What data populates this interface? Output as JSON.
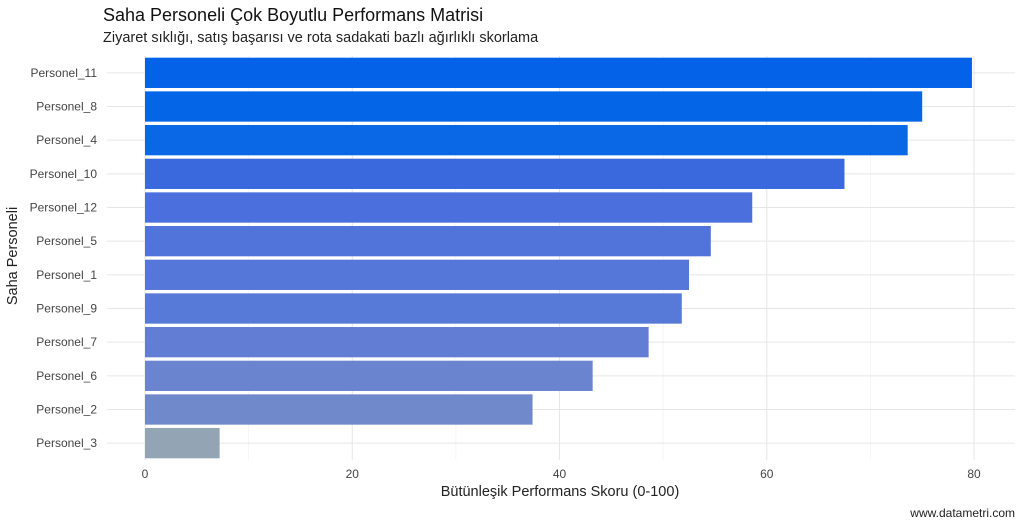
{
  "chart_data": {
    "type": "bar",
    "orientation": "horizontal",
    "title": "Saha Personeli Çok Boyutlu Performans Matrisi",
    "subtitle": "Ziyaret sıklığı, satış başarısı ve rota sadakati bazlı ağırlıklı skorlama",
    "xlabel": "Bütünleşik Performans Skoru (0-100)",
    "ylabel": "Saha Personeli",
    "caption": "www.datametri.com",
    "xlim": [
      0,
      84
    ],
    "xticks": [
      0,
      20,
      40,
      60,
      80
    ],
    "grid": true,
    "categories": [
      "Personel_11",
      "Personel_8",
      "Personel_4",
      "Personel_10",
      "Personel_12",
      "Personel_5",
      "Personel_1",
      "Personel_9",
      "Personel_7",
      "Personel_6",
      "Personel_2",
      "Personel_3"
    ],
    "values": [
      79.8,
      75.0,
      73.6,
      67.5,
      58.6,
      54.6,
      52.5,
      51.8,
      48.6,
      43.2,
      37.4,
      7.2
    ],
    "colors": [
      "#0362e8",
      "#0465e7",
      "#0a67e6",
      "#3969dc",
      "#4b6fdc",
      "#5174db",
      "#5677da",
      "#5779d7",
      "#617dd4",
      "#6b84cf",
      "#7089cb",
      "#93a4b5"
    ]
  }
}
